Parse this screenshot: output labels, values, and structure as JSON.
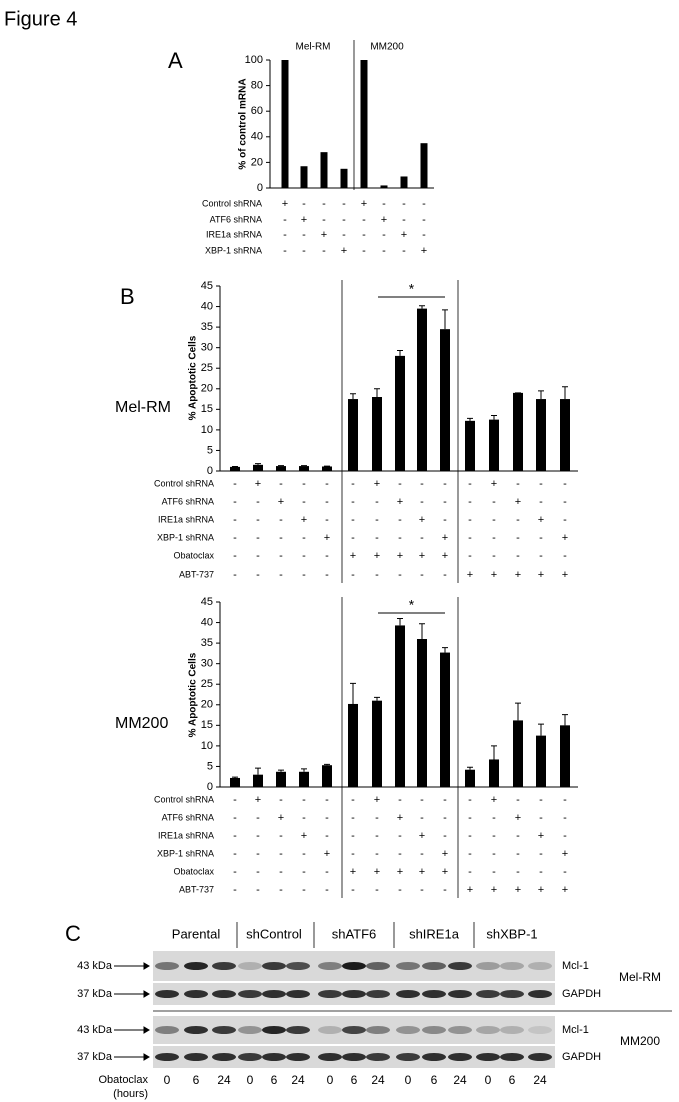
{
  "figure_title": "Figure 4",
  "chart_data": [
    {
      "type": "bar",
      "panel_label": "A",
      "ylabel": "% of control mRNA",
      "group_labels": [
        "Mel-RM",
        "MM200"
      ],
      "values": [
        100,
        17,
        28,
        15,
        100,
        2,
        9,
        35
      ],
      "color": "#000000",
      "ylim": [
        0,
        100
      ],
      "yticks": [
        0,
        20,
        40,
        60,
        80,
        100
      ],
      "conditions": [
        {
          "label": "Control shRNA",
          "marks": [
            "+",
            "-",
            "-",
            "-",
            "+",
            "-",
            "-",
            "-"
          ]
        },
        {
          "label": "ATF6 shRNA",
          "marks": [
            "-",
            "+",
            "-",
            "-",
            "-",
            "+",
            "-",
            "-"
          ]
        },
        {
          "label": "IRE1a shRNA",
          "marks": [
            "-",
            "-",
            "+",
            "-",
            "-",
            "-",
            "+",
            "-"
          ]
        },
        {
          "label": "XBP-1 shRNA",
          "marks": [
            "-",
            "-",
            "-",
            "+",
            "-",
            "-",
            "-",
            "+"
          ]
        }
      ]
    },
    {
      "type": "bar",
      "panel_label": "B",
      "row_label": "Mel-RM",
      "ylabel": "% Apoptotic Cells",
      "annotation": "*",
      "values": [
        1,
        1.5,
        1.2,
        1.2,
        1.1,
        17.5,
        18,
        28,
        39.5,
        34.5,
        12.2,
        12.5,
        19,
        17.5,
        17.5
      ],
      "errors": [
        0.1,
        0.3,
        0.1,
        0.1,
        0.1,
        1.3,
        2,
        1.3,
        0.7,
        4.7,
        0.6,
        1,
        0,
        2,
        3
      ],
      "color": "#000000",
      "ylim": [
        0,
        45
      ],
      "yticks": [
        0,
        5,
        10,
        15,
        20,
        25,
        30,
        35,
        40,
        45
      ],
      "conditions": [
        {
          "label": "Control shRNA",
          "marks": [
            "-",
            "+",
            "-",
            "-",
            "-",
            "-",
            "+",
            "-",
            "-",
            "-",
            "-",
            "+",
            "-",
            "-",
            "-"
          ]
        },
        {
          "label": "ATF6 shRNA",
          "marks": [
            "-",
            "-",
            "+",
            "-",
            "-",
            "-",
            "-",
            "+",
            "-",
            "-",
            "-",
            "-",
            "+",
            "-",
            "-"
          ]
        },
        {
          "label": "IRE1a shRNA",
          "marks": [
            "-",
            "-",
            "-",
            "+",
            "-",
            "-",
            "-",
            "-",
            "+",
            "-",
            "-",
            "-",
            "-",
            "+",
            "-"
          ]
        },
        {
          "label": "XBP-1 shRNA",
          "marks": [
            "-",
            "-",
            "-",
            "-",
            "+",
            "-",
            "-",
            "-",
            "-",
            "+",
            "-",
            "-",
            "-",
            "-",
            "+"
          ]
        },
        {
          "label": "Obatoclax",
          "marks": [
            "-",
            "-",
            "-",
            "-",
            "-",
            "+",
            "+",
            "+",
            "+",
            "+",
            "-",
            "-",
            "-",
            "-",
            "-"
          ]
        },
        {
          "label": "ABT-737",
          "marks": [
            "-",
            "-",
            "-",
            "-",
            "-",
            "-",
            "-",
            "-",
            "-",
            "-",
            "+",
            "+",
            "+",
            "+",
            "+"
          ]
        }
      ]
    },
    {
      "type": "bar",
      "row_label": "MM200",
      "ylabel": "% Apoptotic Cells",
      "annotation": "*",
      "values": [
        2.2,
        3,
        3.7,
        3.7,
        5.3,
        20.2,
        21,
        39.3,
        36,
        32.7,
        4.2,
        6.7,
        16.2,
        12.5,
        15
      ],
      "errors": [
        0.2,
        1.6,
        0.4,
        0.7,
        0.2,
        5,
        0.8,
        1.7,
        3.7,
        1.2,
        0.6,
        3.3,
        4.2,
        2.8,
        2.6
      ],
      "color": "#000000",
      "ylim": [
        0,
        45
      ],
      "yticks": [
        0,
        5,
        10,
        15,
        20,
        25,
        30,
        35,
        40,
        45
      ],
      "conditions": [
        {
          "label": "Control shRNA",
          "marks": [
            "-",
            "+",
            "-",
            "-",
            "-",
            "-",
            "+",
            "-",
            "-",
            "-",
            "-",
            "+",
            "-",
            "-",
            "-"
          ]
        },
        {
          "label": "ATF6 shRNA",
          "marks": [
            "-",
            "-",
            "+",
            "-",
            "-",
            "-",
            "-",
            "+",
            "-",
            "-",
            "-",
            "-",
            "+",
            "-",
            "-"
          ]
        },
        {
          "label": "IRE1a shRNA",
          "marks": [
            "-",
            "-",
            "-",
            "+",
            "-",
            "-",
            "-",
            "-",
            "+",
            "-",
            "-",
            "-",
            "-",
            "+",
            "-"
          ]
        },
        {
          "label": "XBP-1 shRNA",
          "marks": [
            "-",
            "-",
            "-",
            "-",
            "+",
            "-",
            "-",
            "-",
            "-",
            "+",
            "-",
            "-",
            "-",
            "-",
            "+"
          ]
        },
        {
          "label": "Obatoclax",
          "marks": [
            "-",
            "-",
            "-",
            "-",
            "-",
            "+",
            "+",
            "+",
            "+",
            "+",
            "-",
            "-",
            "-",
            "-",
            "-"
          ]
        },
        {
          "label": "ABT-737",
          "marks": [
            "-",
            "-",
            "-",
            "-",
            "-",
            "-",
            "-",
            "-",
            "-",
            "-",
            "+",
            "+",
            "+",
            "+",
            "+"
          ]
        }
      ]
    }
  ],
  "blot": {
    "panel_label": "C",
    "groups": [
      "Parental",
      "shControl",
      "shATF6",
      "shIRE1a",
      "shXBP-1"
    ],
    "markers": [
      "43 kDa",
      "37 kDa"
    ],
    "proteins": [
      "Mcl-1",
      "GAPDH"
    ],
    "cell_lines": [
      "Mel-RM",
      "MM200"
    ],
    "time_label": [
      "Obatoclax",
      "(hours)"
    ],
    "times": [
      0,
      6,
      24,
      0,
      6,
      24,
      0,
      6,
      24,
      0,
      6,
      24,
      0,
      6,
      24
    ]
  }
}
